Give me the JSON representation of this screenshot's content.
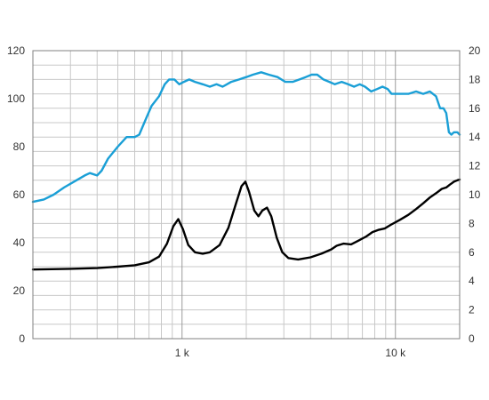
{
  "chart_data": {
    "type": "line",
    "x_scale": "log",
    "xlim": [
      200,
      20000
    ],
    "x_tick_labels": [
      {
        "value": 1000,
        "label": "1 k"
      },
      {
        "value": 10000,
        "label": "10 k"
      }
    ],
    "ylim_left": [
      0,
      120
    ],
    "y_ticks_left": [
      0,
      20,
      40,
      60,
      80,
      100,
      120
    ],
    "ylim_right": [
      0,
      20
    ],
    "y_ticks_right": [
      0,
      2,
      4,
      6,
      8,
      10,
      12,
      14,
      16,
      18,
      20
    ],
    "grid": true,
    "series": [
      {
        "axis": "left",
        "color": "#1a9fd6",
        "points": [
          [
            200,
            57
          ],
          [
            225,
            58
          ],
          [
            250,
            60
          ],
          [
            280,
            63
          ],
          [
            320,
            66
          ],
          [
            350,
            68
          ],
          [
            370,
            69
          ],
          [
            400,
            68
          ],
          [
            420,
            70
          ],
          [
            450,
            75
          ],
          [
            500,
            80
          ],
          [
            550,
            84
          ],
          [
            600,
            84
          ],
          [
            630,
            85
          ],
          [
            680,
            92
          ],
          [
            720,
            97
          ],
          [
            780,
            101
          ],
          [
            830,
            106
          ],
          [
            870,
            108
          ],
          [
            920,
            108
          ],
          [
            970,
            106
          ],
          [
            1020,
            107
          ],
          [
            1080,
            108
          ],
          [
            1150,
            107
          ],
          [
            1250,
            106
          ],
          [
            1350,
            105
          ],
          [
            1450,
            106
          ],
          [
            1550,
            105
          ],
          [
            1700,
            107
          ],
          [
            1850,
            108
          ],
          [
            2000,
            109
          ],
          [
            2150,
            110
          ],
          [
            2350,
            111
          ],
          [
            2550,
            110
          ],
          [
            2800,
            109
          ],
          [
            3050,
            107
          ],
          [
            3300,
            107
          ],
          [
            3550,
            108
          ],
          [
            3800,
            109
          ],
          [
            4050,
            110
          ],
          [
            4300,
            110
          ],
          [
            4600,
            108
          ],
          [
            4900,
            107
          ],
          [
            5200,
            106
          ],
          [
            5600,
            107
          ],
          [
            6000,
            106
          ],
          [
            6400,
            105
          ],
          [
            6800,
            106
          ],
          [
            7200,
            105
          ],
          [
            7700,
            103
          ],
          [
            8200,
            104
          ],
          [
            8700,
            105
          ],
          [
            9200,
            104
          ],
          [
            9600,
            102
          ],
          [
            10000,
            102
          ],
          [
            10600,
            102
          ],
          [
            11500,
            102
          ],
          [
            12500,
            103
          ],
          [
            13500,
            102
          ],
          [
            14500,
            103
          ],
          [
            15500,
            101
          ],
          [
            16200,
            96
          ],
          [
            16800,
            96
          ],
          [
            17300,
            94
          ],
          [
            17800,
            86
          ],
          [
            18300,
            85
          ],
          [
            18800,
            86
          ],
          [
            19500,
            86
          ],
          [
            20000,
            85
          ]
        ]
      },
      {
        "axis": "right",
        "color": "#000000",
        "points": [
          [
            200,
            4.8
          ],
          [
            300,
            4.85
          ],
          [
            400,
            4.9
          ],
          [
            500,
            5.0
          ],
          [
            600,
            5.1
          ],
          [
            700,
            5.3
          ],
          [
            780,
            5.7
          ],
          [
            850,
            6.6
          ],
          [
            910,
            7.8
          ],
          [
            960,
            8.3
          ],
          [
            1010,
            7.6
          ],
          [
            1070,
            6.5
          ],
          [
            1150,
            6.0
          ],
          [
            1250,
            5.9
          ],
          [
            1350,
            6.0
          ],
          [
            1500,
            6.5
          ],
          [
            1650,
            7.7
          ],
          [
            1800,
            9.5
          ],
          [
            1900,
            10.6
          ],
          [
            1980,
            10.9
          ],
          [
            2060,
            10.2
          ],
          [
            2180,
            8.9
          ],
          [
            2280,
            8.5
          ],
          [
            2380,
            8.9
          ],
          [
            2500,
            9.1
          ],
          [
            2620,
            8.5
          ],
          [
            2780,
            7.0
          ],
          [
            2950,
            6.0
          ],
          [
            3150,
            5.6
          ],
          [
            3500,
            5.5
          ],
          [
            4000,
            5.65
          ],
          [
            4500,
            5.9
          ],
          [
            5000,
            6.2
          ],
          [
            5300,
            6.45
          ],
          [
            5700,
            6.6
          ],
          [
            6200,
            6.55
          ],
          [
            6700,
            6.8
          ],
          [
            7300,
            7.1
          ],
          [
            7800,
            7.4
          ],
          [
            8300,
            7.55
          ],
          [
            8900,
            7.65
          ],
          [
            9500,
            7.9
          ],
          [
            10500,
            8.25
          ],
          [
            11500,
            8.6
          ],
          [
            12500,
            9.0
          ],
          [
            13500,
            9.4
          ],
          [
            14500,
            9.8
          ],
          [
            15500,
            10.1
          ],
          [
            16500,
            10.4
          ],
          [
            17300,
            10.5
          ],
          [
            18000,
            10.7
          ],
          [
            18800,
            10.9
          ],
          [
            19500,
            11.0
          ],
          [
            20000,
            11.05
          ]
        ]
      }
    ]
  }
}
